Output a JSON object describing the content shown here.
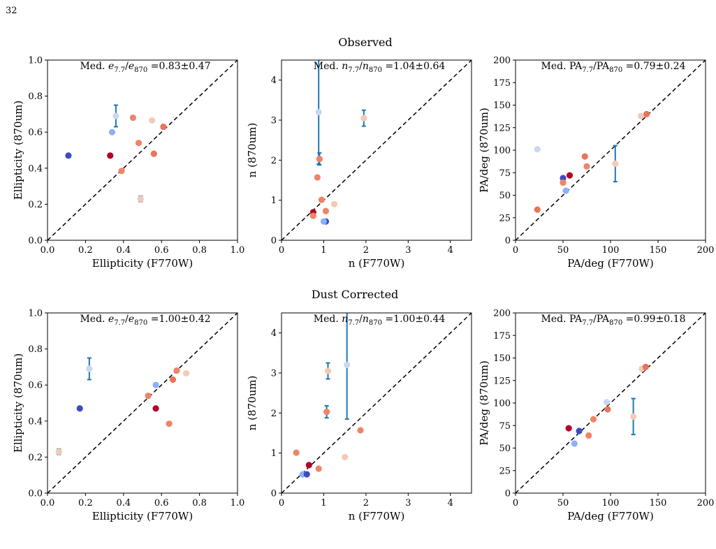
{
  "page_number": "32",
  "row_titles": [
    "Observed",
    "Dust Corrected"
  ],
  "colors": {
    "errorbar": "#1f77b4",
    "palette": [
      "#3b4cc0",
      "#8db0fe",
      "#c9d7f0",
      "#f2cbb7",
      "#ee8468",
      "#e7745b",
      "#b40426"
    ]
  },
  "chart_data": [
    {
      "id": "obs-ellipticity",
      "type": "scatter",
      "row": 0,
      "col": 0,
      "xlabel": "Ellipticity (F770W)",
      "ylabel": "Ellipticity (870um)",
      "xlim": [
        0,
        1
      ],
      "ylim": [
        0,
        1
      ],
      "xticks": [
        0.0,
        0.2,
        0.4,
        0.6,
        0.8,
        1.0
      ],
      "yticks": [
        0.0,
        0.2,
        0.4,
        0.6,
        0.8,
        1.0
      ],
      "tick_labels_x": [
        "0.0",
        "0.2",
        "0.4",
        "0.6",
        "0.8",
        "1.0"
      ],
      "tick_labels_y": [
        "0.0",
        "0.2",
        "0.4",
        "0.6",
        "0.8",
        "1.0"
      ],
      "annotation": {
        "prefix": "Med. ",
        "num": "e",
        "num_sub": "7.7",
        "den": "e",
        "den_sub": "870",
        "suffix": " =0.83±0.47"
      },
      "diagonal": true,
      "points": [
        {
          "x": 0.11,
          "y": 0.47,
          "c": "#3b4cc0"
        },
        {
          "x": 0.34,
          "y": 0.6,
          "c": "#8db0fe"
        },
        {
          "x": 0.36,
          "y": 0.69,
          "c": "#c9d7f0",
          "yerr": 0.06
        },
        {
          "x": 0.45,
          "y": 0.68,
          "c": "#ee8468"
        },
        {
          "x": 0.55,
          "y": 0.665,
          "c": "#f2cbb7"
        },
        {
          "x": 0.61,
          "y": 0.63,
          "c": "#e7745b"
        },
        {
          "x": 0.48,
          "y": 0.54,
          "c": "#ee8468"
        },
        {
          "x": 0.33,
          "y": 0.47,
          "c": "#b40426"
        },
        {
          "x": 0.56,
          "y": 0.48,
          "c": "#e7745b"
        },
        {
          "x": 0.39,
          "y": 0.385,
          "c": "#ee8468"
        },
        {
          "x": 0.49,
          "y": 0.23,
          "c": "#f2cbb7",
          "yerr": 0.015
        }
      ]
    },
    {
      "id": "obs-sersic",
      "type": "scatter",
      "row": 0,
      "col": 1,
      "xlabel": "n (F770W)",
      "ylabel": "n (870um)",
      "xlim": [
        0,
        4.5
      ],
      "ylim": [
        0,
        4.5
      ],
      "xticks": [
        0,
        1,
        2,
        3,
        4
      ],
      "yticks": [
        0,
        1,
        2,
        3,
        4
      ],
      "tick_labels_x": [
        "0",
        "1",
        "2",
        "3",
        "4"
      ],
      "tick_labels_y": [
        "0",
        "1",
        "2",
        "3",
        "4"
      ],
      "annotation": {
        "prefix": "Med. ",
        "num": "n",
        "num_sub": "7.7",
        "den": "n",
        "den_sub": "870",
        "suffix": " =1.04±0.64"
      },
      "diagonal": true,
      "points": [
        {
          "x": 0.88,
          "y": 3.2,
          "c": "#c9d7f0",
          "yerr_low": 1.3,
          "yerr_high": 1.5
        },
        {
          "x": 1.95,
          "y": 3.05,
          "c": "#f2cbb7",
          "yerr": 0.2
        },
        {
          "x": 0.9,
          "y": 2.03,
          "c": "#ee8468",
          "yerr": 0.15
        },
        {
          "x": 0.85,
          "y": 1.57,
          "c": "#ee8468"
        },
        {
          "x": 0.95,
          "y": 1.01,
          "c": "#ee8468"
        },
        {
          "x": 1.25,
          "y": 0.9,
          "c": "#f2cbb7"
        },
        {
          "x": 1.05,
          "y": 0.73,
          "c": "#ee8468"
        },
        {
          "x": 0.75,
          "y": 0.7,
          "c": "#b40426"
        },
        {
          "x": 0.75,
          "y": 0.61,
          "c": "#ee8468"
        },
        {
          "x": 1.05,
          "y": 0.47,
          "c": "#3b4cc0"
        },
        {
          "x": 1.0,
          "y": 0.47,
          "c": "#8db0fe"
        }
      ]
    },
    {
      "id": "obs-pa",
      "type": "scatter",
      "row": 0,
      "col": 2,
      "xlabel": "PA/deg (F770W)",
      "ylabel": "PA/deg (870um)",
      "xlim": [
        0,
        200
      ],
      "ylim": [
        0,
        200
      ],
      "xticks": [
        0,
        50,
        100,
        150,
        200
      ],
      "yticks": [
        0,
        25,
        50,
        75,
        100,
        125,
        150,
        175,
        200
      ],
      "tick_labels_x": [
        "0",
        "50",
        "100",
        "150",
        "200"
      ],
      "tick_labels_y": [
        "0",
        "25",
        "50",
        "75",
        "100",
        "125",
        "150",
        "175",
        "200"
      ],
      "annotation": {
        "prefix": "Med. ",
        "num": "PA",
        "num_sub": "7.7",
        "den": "PA",
        "den_sub": "870",
        "suffix": " =0.79±0.24"
      },
      "diagonal": true,
      "points": [
        {
          "x": 23,
          "y": 101,
          "c": "#c9d7f0"
        },
        {
          "x": 23,
          "y": 34,
          "c": "#e7745b"
        },
        {
          "x": 50,
          "y": 69,
          "c": "#3b4cc0"
        },
        {
          "x": 50,
          "y": 64,
          "c": "#ee8468"
        },
        {
          "x": 53,
          "y": 55,
          "c": "#8db0fe"
        },
        {
          "x": 57,
          "y": 72,
          "c": "#b40426"
        },
        {
          "x": 73,
          "y": 93,
          "c": "#e7745b"
        },
        {
          "x": 75,
          "y": 82,
          "c": "#ee8468"
        },
        {
          "x": 105,
          "y": 85,
          "c": "#f2cbb7",
          "yerr": 20
        },
        {
          "x": 132,
          "y": 138,
          "c": "#f2cbb7"
        },
        {
          "x": 138,
          "y": 140,
          "c": "#e7745b"
        }
      ]
    },
    {
      "id": "dc-ellipticity",
      "type": "scatter",
      "row": 1,
      "col": 0,
      "xlabel": "Ellipticity (F770W)",
      "ylabel": "Ellipticity (870um)",
      "xlim": [
        0,
        1
      ],
      "ylim": [
        0,
        1
      ],
      "xticks": [
        0.0,
        0.2,
        0.4,
        0.6,
        0.8,
        1.0
      ],
      "yticks": [
        0.0,
        0.2,
        0.4,
        0.6,
        0.8,
        1.0
      ],
      "tick_labels_x": [
        "0.0",
        "0.2",
        "0.4",
        "0.6",
        "0.8",
        "1.0"
      ],
      "tick_labels_y": [
        "0.0",
        "0.2",
        "0.4",
        "0.6",
        "0.8",
        "1.0"
      ],
      "annotation": {
        "prefix": "Med. ",
        "num": "e",
        "num_sub": "7.7",
        "den": "e",
        "den_sub": "870",
        "suffix": " =1.00±0.42"
      },
      "diagonal": true,
      "points": [
        {
          "x": 0.06,
          "y": 0.23,
          "c": "#f2cbb7",
          "yerr": 0.015
        },
        {
          "x": 0.17,
          "y": 0.47,
          "c": "#3b4cc0"
        },
        {
          "x": 0.22,
          "y": 0.69,
          "c": "#c9d7f0",
          "yerr": 0.06
        },
        {
          "x": 0.53,
          "y": 0.54,
          "c": "#ee8468"
        },
        {
          "x": 0.57,
          "y": 0.6,
          "c": "#8db0fe"
        },
        {
          "x": 0.57,
          "y": 0.47,
          "c": "#b40426"
        },
        {
          "x": 0.64,
          "y": 0.385,
          "c": "#ee8468"
        },
        {
          "x": 0.66,
          "y": 0.63,
          "c": "#e7745b"
        },
        {
          "x": 0.68,
          "y": 0.68,
          "c": "#ee8468"
        },
        {
          "x": 0.73,
          "y": 0.665,
          "c": "#f2cbb7"
        }
      ]
    },
    {
      "id": "dc-sersic",
      "type": "scatter",
      "row": 1,
      "col": 1,
      "xlabel": "n (F770W)",
      "ylabel": "n (870um)",
      "xlim": [
        0,
        4.5
      ],
      "ylim": [
        0,
        4.5
      ],
      "xticks": [
        0,
        1,
        2,
        3,
        4
      ],
      "yticks": [
        0,
        1,
        2,
        3,
        4
      ],
      "tick_labels_x": [
        "0",
        "1",
        "2",
        "3",
        "4"
      ],
      "tick_labels_y": [
        "0",
        "1",
        "2",
        "3",
        "4"
      ],
      "annotation": {
        "prefix": "Med. ",
        "num": "n",
        "num_sub": "7.7",
        "den": "n",
        "den_sub": "870",
        "suffix": " =1.00±0.44"
      },
      "diagonal": true,
      "points": [
        {
          "x": 1.55,
          "y": 3.2,
          "c": "#c9d7f0",
          "yerr_low": 1.35,
          "yerr_high": 1.5
        },
        {
          "x": 1.1,
          "y": 3.05,
          "c": "#f2cbb7",
          "yerr": 0.2
        },
        {
          "x": 1.07,
          "y": 2.03,
          "c": "#ee8468",
          "yerr": 0.15
        },
        {
          "x": 1.87,
          "y": 1.57,
          "c": "#ee8468"
        },
        {
          "x": 0.35,
          "y": 1.01,
          "c": "#ee8468"
        },
        {
          "x": 1.5,
          "y": 0.9,
          "c": "#f2cbb7"
        },
        {
          "x": 0.65,
          "y": 0.7,
          "c": "#b40426"
        },
        {
          "x": 0.88,
          "y": 0.61,
          "c": "#ee8468"
        },
        {
          "x": 0.5,
          "y": 0.47,
          "c": "#8db0fe"
        },
        {
          "x": 0.6,
          "y": 0.47,
          "c": "#3b4cc0"
        }
      ]
    },
    {
      "id": "dc-pa",
      "type": "scatter",
      "row": 1,
      "col": 2,
      "xlabel": "PA/deg (F770W)",
      "ylabel": "PA/deg (870um)",
      "xlim": [
        0,
        200
      ],
      "ylim": [
        0,
        200
      ],
      "xticks": [
        0,
        50,
        100,
        150,
        200
      ],
      "yticks": [
        0,
        25,
        50,
        75,
        100,
        125,
        150,
        175,
        200
      ],
      "tick_labels_x": [
        "0",
        "50",
        "100",
        "150",
        "200"
      ],
      "tick_labels_y": [
        "0",
        "25",
        "50",
        "75",
        "100",
        "125",
        "150",
        "175",
        "200"
      ],
      "annotation": {
        "prefix": "Med. ",
        "num": "PA",
        "num_sub": "7.7",
        "den": "PA",
        "den_sub": "870",
        "suffix": " =0.99±0.18"
      },
      "diagonal": true,
      "points": [
        {
          "x": 56,
          "y": 72,
          "c": "#b40426"
        },
        {
          "x": 62,
          "y": 55,
          "c": "#8db0fe"
        },
        {
          "x": 67,
          "y": 69,
          "c": "#3b4cc0"
        },
        {
          "x": 77,
          "y": 64,
          "c": "#ee8468"
        },
        {
          "x": 82,
          "y": 82,
          "c": "#ee8468"
        },
        {
          "x": 96,
          "y": 101,
          "c": "#c9d7f0"
        },
        {
          "x": 97,
          "y": 93,
          "c": "#e7745b"
        },
        {
          "x": 124,
          "y": 85,
          "c": "#f2cbb7",
          "yerr": 20
        },
        {
          "x": 133,
          "y": 138,
          "c": "#f2cbb7"
        },
        {
          "x": 137,
          "y": 140,
          "c": "#e7745b"
        }
      ]
    }
  ]
}
